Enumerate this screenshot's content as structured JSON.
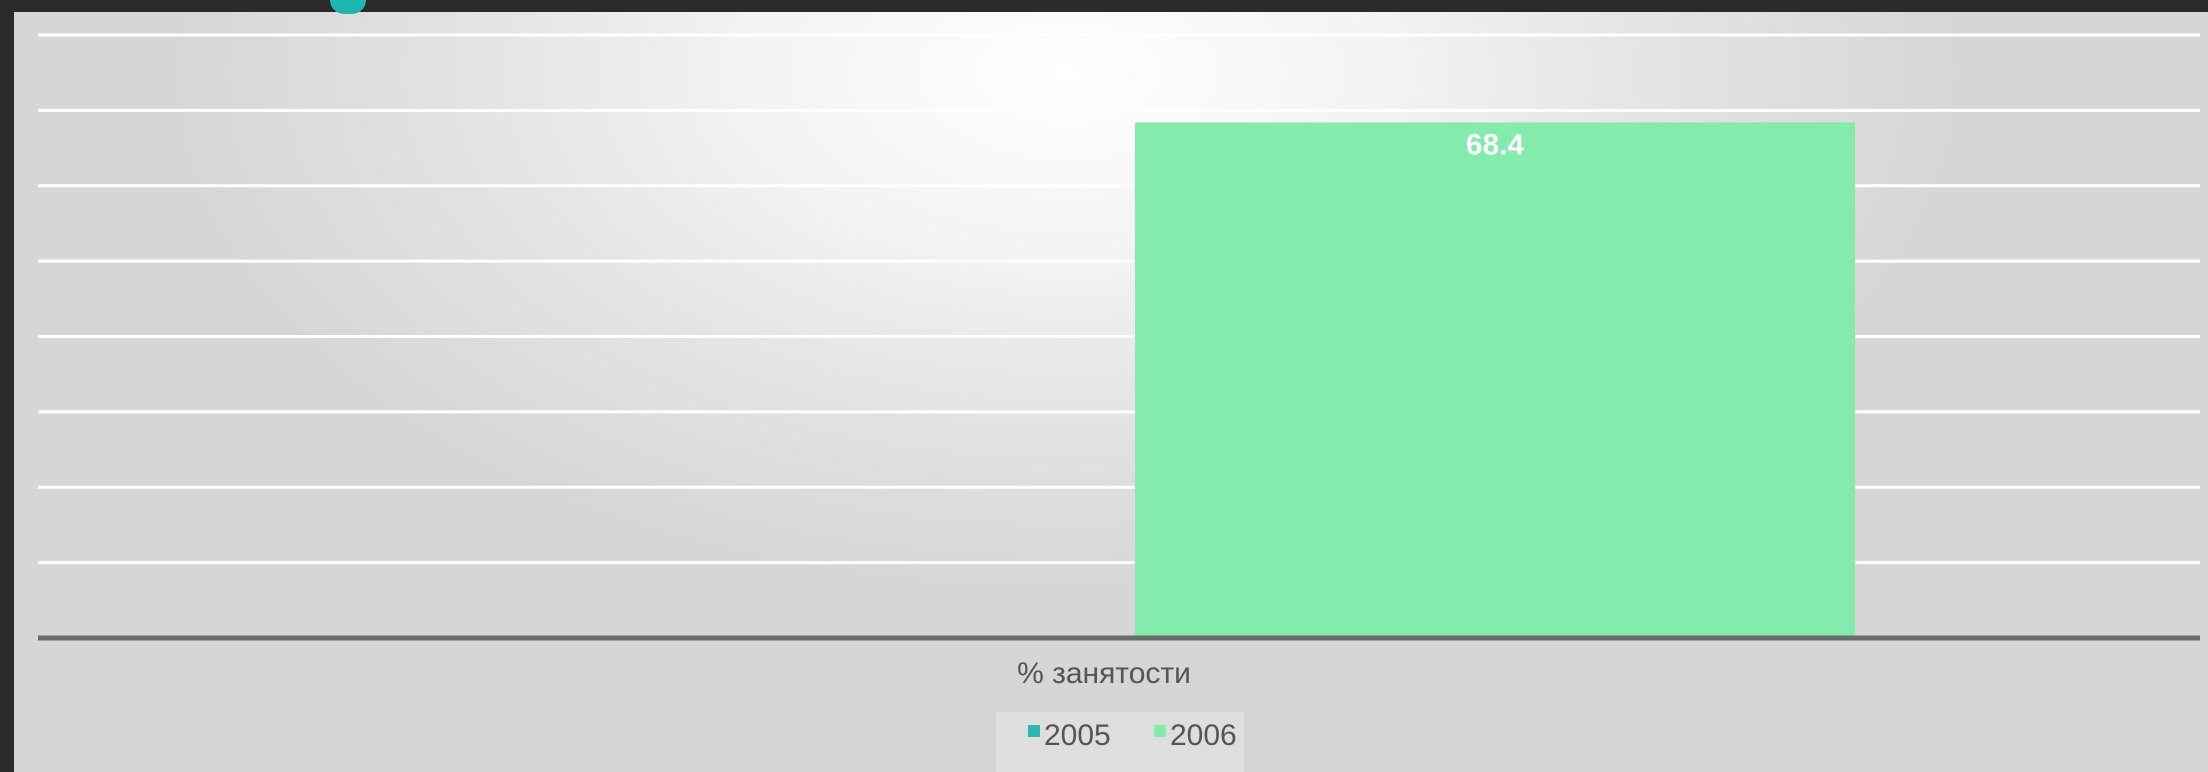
{
  "accent_color": "#1fb5b0",
  "chart_data": {
    "type": "bar",
    "categories": [
      "% занятости"
    ],
    "series": [
      {
        "name": "2005",
        "values": [
          0
        ],
        "color": "#2cb7b5"
      },
      {
        "name": "2006",
        "values": [
          68.4
        ],
        "color": "#83ebac"
      }
    ],
    "data_labels": [
      "",
      "68.4"
    ],
    "xlabel": "% занятости",
    "ylim": [
      0,
      80
    ],
    "gridlines": true,
    "legend_position": "bottom"
  }
}
